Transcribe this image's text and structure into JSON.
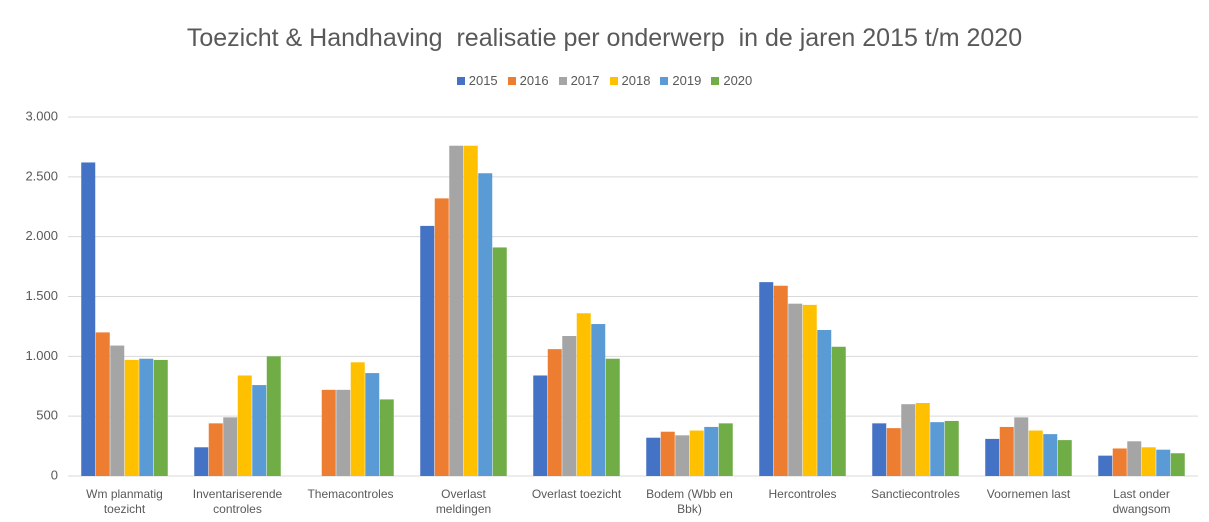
{
  "chart_data": {
    "type": "bar",
    "title": "Toezicht & Handhaving  realisatie per onderwerp  in de jaren 2015 t/m 2020",
    "categories": [
      "Wm planmatig toezicht",
      "Inventariserende controles",
      "Themacontroles",
      "Overlast meldingen",
      "Overlast toezicht",
      "Bodem (Wbb en Bbk)",
      "Hercontroles",
      "Sanctiecontroles",
      "Voornemen last",
      "Last onder dwangsom"
    ],
    "series": [
      {
        "name": "2015",
        "color": "#4472c4",
        "values": [
          2620,
          240,
          null,
          2090,
          840,
          320,
          1620,
          440,
          310,
          170
        ]
      },
      {
        "name": "2016",
        "color": "#ed7d31",
        "values": [
          1200,
          440,
          720,
          2320,
          1060,
          370,
          1590,
          400,
          410,
          230
        ]
      },
      {
        "name": "2017",
        "color": "#a5a5a5",
        "values": [
          1090,
          490,
          720,
          2760,
          1170,
          340,
          1440,
          600,
          490,
          290
        ]
      },
      {
        "name": "2018",
        "color": "#ffc000",
        "values": [
          970,
          840,
          950,
          2760,
          1360,
          380,
          1430,
          610,
          380,
          240
        ]
      },
      {
        "name": "2019",
        "color": "#5b9bd5",
        "values": [
          980,
          760,
          860,
          2530,
          1270,
          410,
          1220,
          450,
          350,
          220
        ]
      },
      {
        "name": "2020",
        "color": "#70ad47",
        "values": [
          970,
          1000,
          640,
          1910,
          980,
          440,
          1080,
          460,
          300,
          190
        ]
      }
    ],
    "ylim": [
      0,
      3000
    ],
    "yticks": [
      0,
      500,
      {
        "value": 1000,
        "label": "1.000"
      },
      {
        "value": 1500,
        "label": "1.500"
      },
      {
        "value": 2000,
        "label": "2.000"
      },
      {
        "value": 2500,
        "label": "2.500"
      },
      {
        "value": 3000,
        "label": "3.000"
      }
    ],
    "grid": true
  }
}
